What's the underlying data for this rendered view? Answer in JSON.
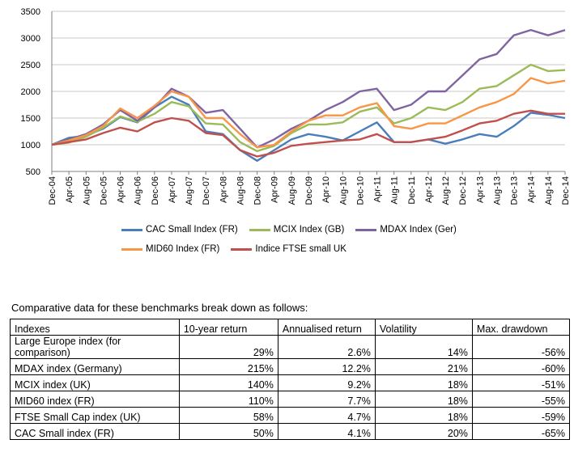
{
  "chart_data": {
    "type": "line",
    "x": [
      "Dec-04",
      "Apr-05",
      "Aug-05",
      "Dec-05",
      "Apr-06",
      "Aug-06",
      "Dec-06",
      "Apr-07",
      "Aug-07",
      "Dec-07",
      "Apr-08",
      "Aug-08",
      "Dec-08",
      "Apr-09",
      "Aug-09",
      "Dec-09",
      "Apr-10",
      "Aug-10",
      "Dec-10",
      "Apr-11",
      "Aug-11",
      "Dec-11",
      "Apr-12",
      "Aug-12",
      "Dec-12",
      "Apr-13",
      "Aug-13",
      "Dec-13",
      "Apr-14",
      "Aug-14",
      "Dec-14"
    ],
    "yticks": [
      "500",
      "1000",
      "1500",
      "2000",
      "2500",
      "3000",
      "3500"
    ],
    "ylim": [
      500,
      3500
    ],
    "grid": true,
    "legend_position": "bottom",
    "series": [
      {
        "name": "CAC Small Index (FR)",
        "color": "#4a7ebb",
        "values": [
          1000,
          1130,
          1170,
          1300,
          1520,
          1420,
          1700,
          1900,
          1750,
          1250,
          1200,
          900,
          700,
          900,
          1100,
          1200,
          1150,
          1080,
          1250,
          1420,
          1050,
          1050,
          1100,
          1020,
          1100,
          1200,
          1150,
          1350,
          1600,
          1560,
          1500
        ]
      },
      {
        "name": "MCIX  Index (GB)",
        "color": "#9bbb59",
        "values": [
          1000,
          1040,
          1150,
          1320,
          1530,
          1430,
          1580,
          1800,
          1720,
          1400,
          1380,
          1050,
          880,
          980,
          1220,
          1380,
          1380,
          1420,
          1620,
          1700,
          1400,
          1500,
          1700,
          1650,
          1800,
          2050,
          2100,
          2300,
          2500,
          2380,
          2400
        ]
      },
      {
        "name": "MDAX Index (Ger)",
        "color": "#8064a2",
        "values": [
          1000,
          1100,
          1200,
          1380,
          1650,
          1450,
          1700,
          2050,
          1900,
          1600,
          1650,
          1300,
          950,
          1100,
          1300,
          1450,
          1650,
          1800,
          2000,
          2050,
          1650,
          1750,
          2000,
          2000,
          2300,
          2600,
          2700,
          3050,
          3150,
          3050,
          3150
        ]
      },
      {
        "name": "MID60 Index (FR)",
        "color": "#f79646",
        "values": [
          1000,
          1080,
          1180,
          1350,
          1680,
          1500,
          1730,
          2000,
          1900,
          1500,
          1500,
          1200,
          950,
          1000,
          1250,
          1450,
          1550,
          1550,
          1700,
          1780,
          1350,
          1300,
          1400,
          1400,
          1550,
          1700,
          1800,
          1950,
          2250,
          2150,
          2200
        ]
      },
      {
        "name": "Indice FTSE small UK",
        "color": "#c0504d",
        "values": [
          1000,
          1050,
          1100,
          1220,
          1320,
          1250,
          1420,
          1500,
          1450,
          1220,
          1180,
          900,
          780,
          850,
          980,
          1020,
          1050,
          1080,
          1100,
          1200,
          1050,
          1050,
          1100,
          1150,
          1270,
          1400,
          1450,
          1580,
          1640,
          1580,
          1580
        ]
      }
    ]
  },
  "caption": "Comparative data for these benchmarks break down as follows:",
  "table": {
    "headers": [
      "Indexes",
      "10-year return",
      "Annualised return",
      "Volatility",
      "Max. drawdown"
    ],
    "rows": [
      [
        "Large Europe index (for comparison)",
        "29%",
        "2.6%",
        "14%",
        "-56%"
      ],
      [
        "MDAX index (Germany)",
        "215%",
        "12.2%",
        "21%",
        "-60%"
      ],
      [
        "MCIX index (UK)",
        "140%",
        "9.2%",
        "18%",
        "-51%"
      ],
      [
        "MID60 index (FR)",
        "110%",
        "7.7%",
        "18%",
        "-55%"
      ],
      [
        "FTSE Small Cap index (UK)",
        "58%",
        "4.7%",
        "18%",
        "-59%"
      ],
      [
        "CAC Small index (FR)",
        "50%",
        "4.1%",
        "20%",
        "-65%"
      ]
    ]
  }
}
